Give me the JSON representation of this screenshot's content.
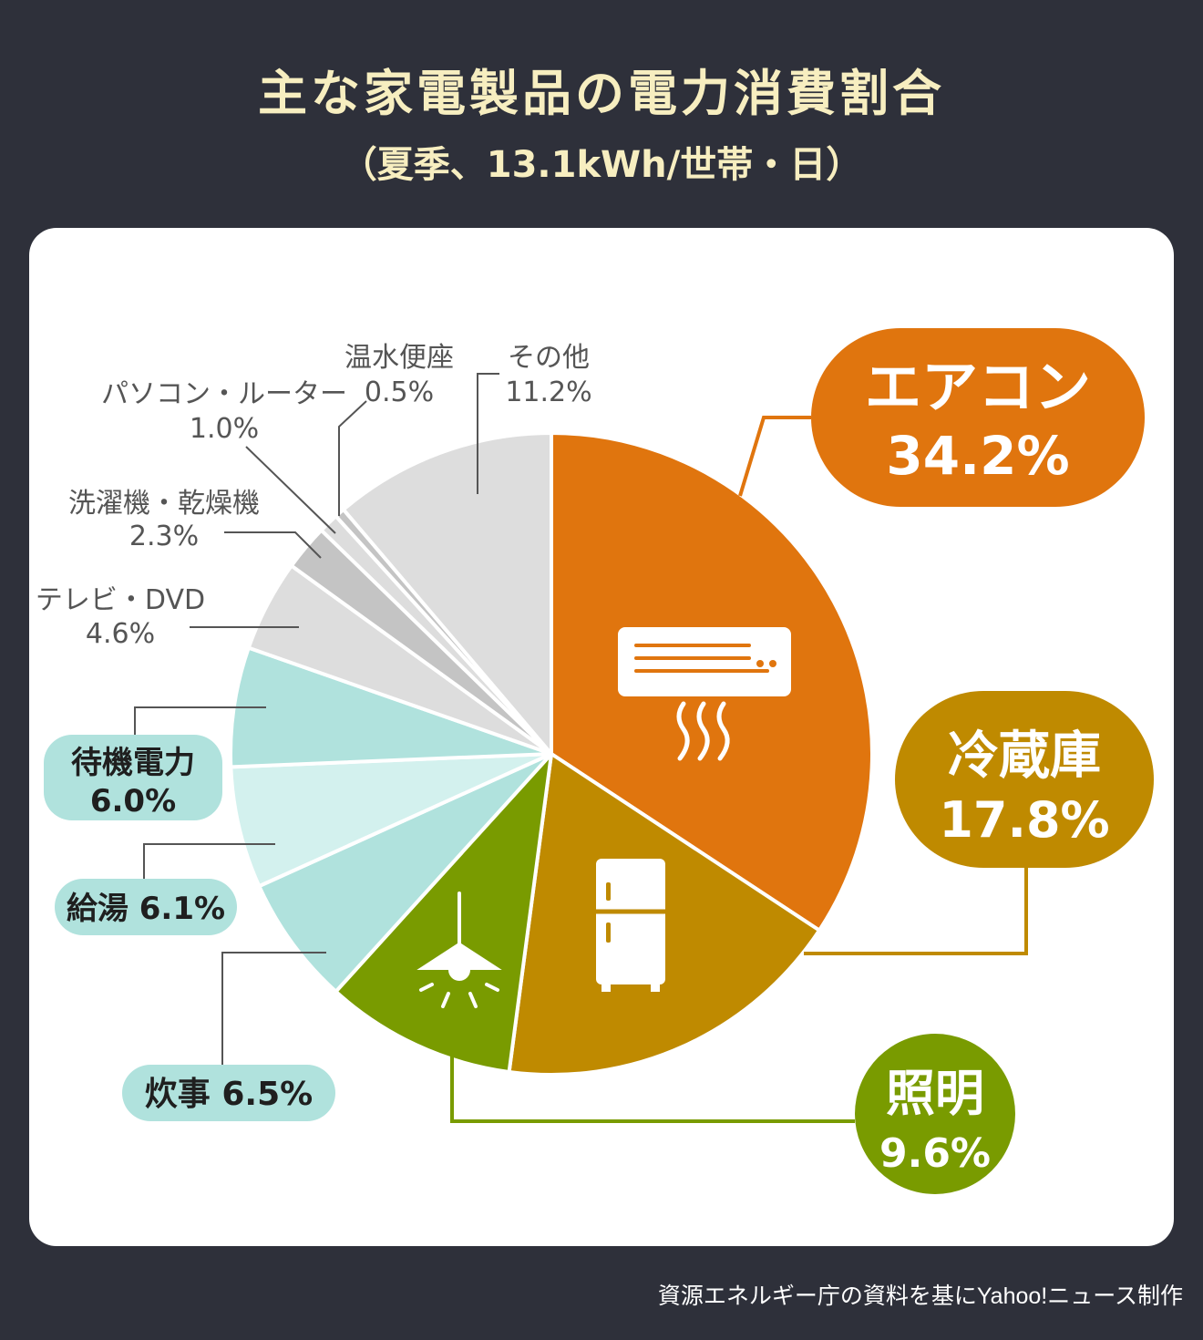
{
  "title": "主な家電製品の電力消費割合",
  "subtitle": "（夏季、13.1kWh/世帯・日）",
  "source": "資源エネルギー庁の資料を基にYahoo!ニュース制作",
  "chart_data": {
    "type": "pie",
    "slices": [
      {
        "label": "エアコン",
        "value": 34.2,
        "value_text": "34.2%",
        "color": "#e0750e"
      },
      {
        "label": "冷蔵庫",
        "value": 17.8,
        "value_text": "17.8%",
        "color": "#bf8a00"
      },
      {
        "label": "照明",
        "value": 9.6,
        "value_text": "9.6%",
        "color": "#799b00"
      },
      {
        "label": "炊事",
        "value": 6.5,
        "value_text": "6.5%",
        "color": "#b0e2dd"
      },
      {
        "label": "給湯",
        "value": 6.1,
        "value_text": "6.1%",
        "color": "#d3f1ee"
      },
      {
        "label": "待機電力",
        "value": 6.0,
        "value_text": "6.0%",
        "color": "#b0e2dd"
      },
      {
        "label": "テレビ・DVD",
        "value": 4.6,
        "value_text": "4.6%",
        "color": "#dddddd"
      },
      {
        "label": "洗濯機・乾燥機",
        "value": 2.3,
        "value_text": "2.3%",
        "color": "#c4c4c4"
      },
      {
        "label": "パソコン・ルーター",
        "value": 1.0,
        "value_text": "1.0%",
        "color": "#dddddd"
      },
      {
        "label": "温水便座",
        "value": 0.5,
        "value_text": "0.5%",
        "color": "#c4c4c4"
      },
      {
        "label": "その他",
        "value": 11.2,
        "value_text": "11.2%",
        "color": "#dddddd"
      }
    ]
  }
}
